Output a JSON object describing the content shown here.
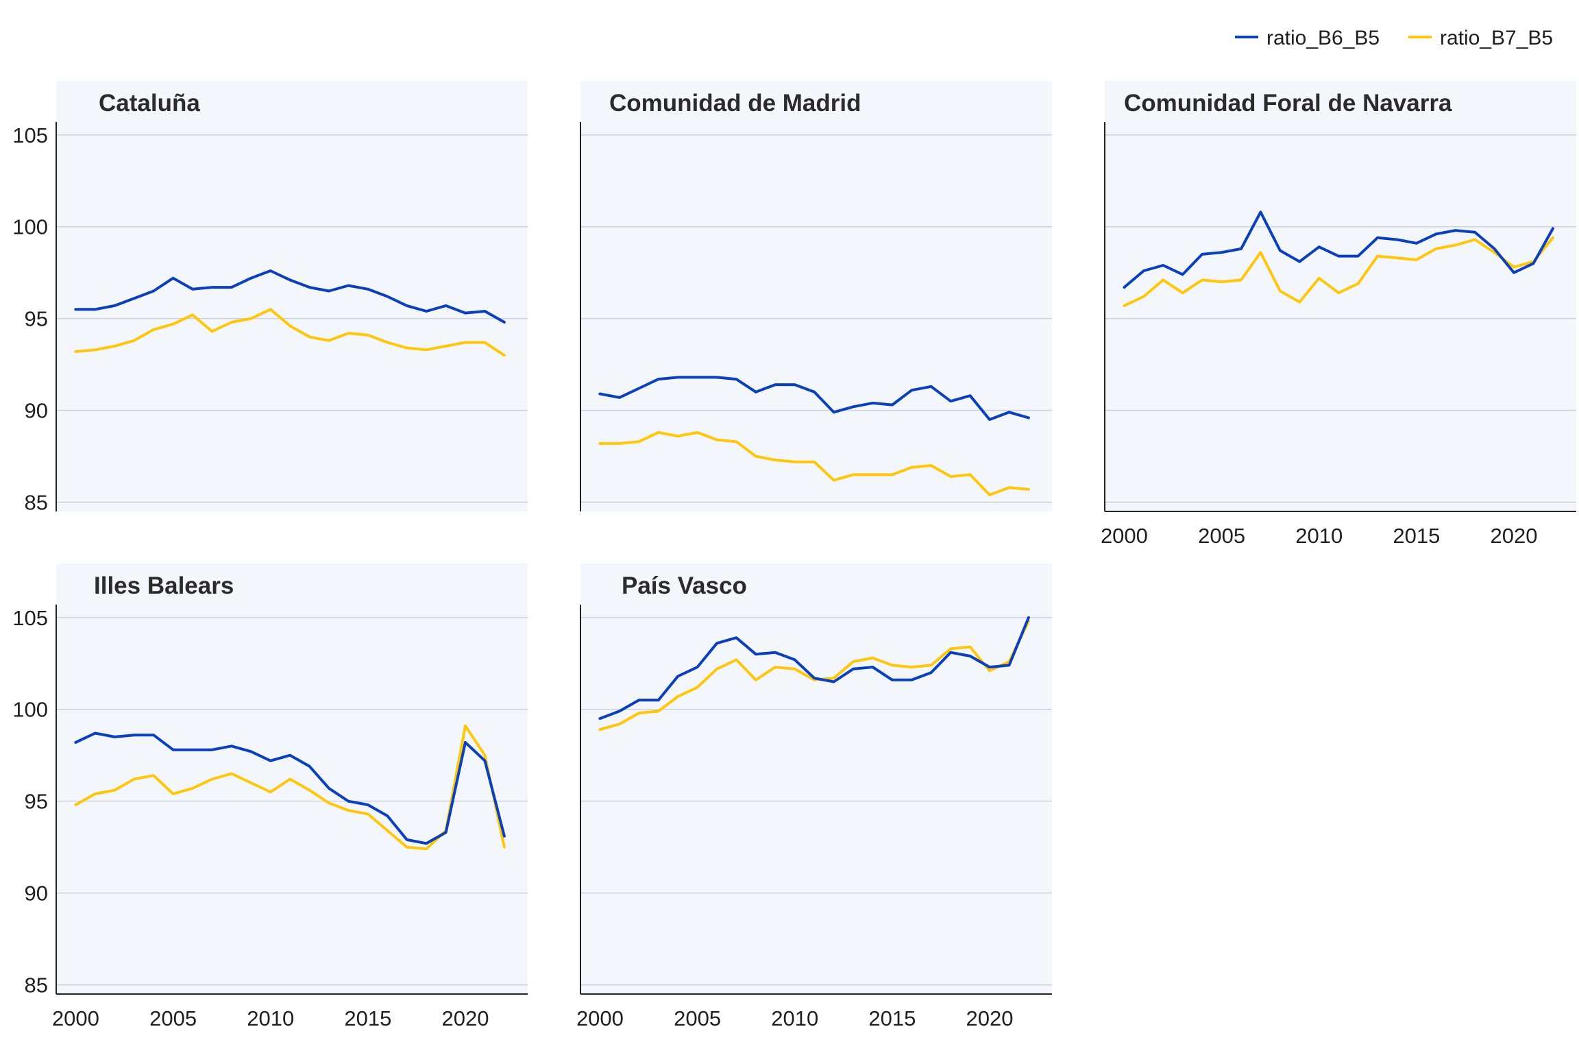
{
  "colors": {
    "ratio_B6_B5": "#0a3fbe",
    "ratio_B7_B5": "#ffc60b",
    "panel_bg": "#f3f6fb",
    "grid": "#cdd3dc",
    "axis": "#222222"
  },
  "chart_data": {
    "type": "line",
    "layout": "facet-grid",
    "legend": {
      "position": "top-right",
      "entries": [
        {
          "key": "ratio_B6_B5",
          "label": "ratio_B6_B5"
        },
        {
          "key": "ratio_B7_B5",
          "label": "ratio_B7_B5"
        }
      ]
    },
    "x": [
      2000,
      2001,
      2002,
      2003,
      2004,
      2005,
      2006,
      2007,
      2008,
      2009,
      2010,
      2011,
      2012,
      2013,
      2014,
      2015,
      2016,
      2017,
      2018,
      2019,
      2020,
      2021,
      2022
    ],
    "x_ticks": [
      2000,
      2005,
      2010,
      2015,
      2020
    ],
    "y_ticks": [
      85,
      90,
      95,
      100,
      105
    ],
    "ylim": [
      84.5,
      105.7
    ],
    "xlim": [
      1999,
      2023.2
    ],
    "grid": true,
    "panels": [
      {
        "title": "Cataluña",
        "series": [
          {
            "key": "ratio_B6_B5",
            "values": [
              95.5,
              95.5,
              95.7,
              96.1,
              96.5,
              97.2,
              96.6,
              96.7,
              96.7,
              97.2,
              97.6,
              97.1,
              96.7,
              96.5,
              96.8,
              96.6,
              96.2,
              95.7,
              95.4,
              95.7,
              95.3,
              95.4,
              94.8
            ]
          },
          {
            "key": "ratio_B7_B5",
            "values": [
              93.2,
              93.3,
              93.5,
              93.8,
              94.4,
              94.7,
              95.2,
              94.3,
              94.8,
              95.0,
              95.5,
              94.6,
              94.0,
              93.8,
              94.2,
              94.1,
              93.7,
              93.4,
              93.3,
              93.5,
              93.7,
              93.7,
              93.0
            ]
          }
        ]
      },
      {
        "title": "Comunidad de Madrid",
        "series": [
          {
            "key": "ratio_B6_B5",
            "values": [
              90.9,
              90.7,
              91.2,
              91.7,
              91.8,
              91.8,
              91.8,
              91.7,
              91.0,
              91.4,
              91.4,
              91.0,
              89.9,
              90.2,
              90.4,
              90.3,
              91.1,
              91.3,
              90.5,
              90.8,
              89.5,
              89.9,
              89.6
            ]
          },
          {
            "key": "ratio_B7_B5",
            "values": [
              88.2,
              88.2,
              88.3,
              88.8,
              88.6,
              88.8,
              88.4,
              88.3,
              87.5,
              87.3,
              87.2,
              87.2,
              86.2,
              86.5,
              86.5,
              86.5,
              86.9,
              87.0,
              86.4,
              86.5,
              85.4,
              85.8,
              85.7
            ]
          }
        ]
      },
      {
        "title": "Comunidad Foral de Navarra",
        "series": [
          {
            "key": "ratio_B6_B5",
            "values": [
              96.7,
              97.6,
              97.9,
              97.4,
              98.5,
              98.6,
              98.8,
              100.8,
              98.7,
              98.1,
              98.9,
              98.4,
              98.4,
              99.4,
              99.3,
              99.1,
              99.6,
              99.8,
              99.7,
              98.8,
              97.5,
              98.0,
              99.9
            ]
          },
          {
            "key": "ratio_B7_B5",
            "values": [
              95.7,
              96.2,
              97.1,
              96.4,
              97.1,
              97.0,
              97.1,
              98.6,
              96.5,
              95.9,
              97.2,
              96.4,
              96.9,
              98.4,
              98.3,
              98.2,
              98.8,
              99.0,
              99.3,
              98.6,
              97.8,
              98.1,
              99.4
            ]
          }
        ]
      },
      {
        "title": "Illes Balears",
        "series": [
          {
            "key": "ratio_B6_B5",
            "values": [
              98.2,
              98.7,
              98.5,
              98.6,
              98.6,
              97.8,
              97.8,
              97.8,
              98.0,
              97.7,
              97.2,
              97.5,
              96.9,
              95.7,
              95.0,
              94.8,
              94.2,
              92.9,
              92.7,
              93.3,
              98.2,
              97.2,
              93.1
            ]
          },
          {
            "key": "ratio_B7_B5",
            "values": [
              94.8,
              95.4,
              95.6,
              96.2,
              96.4,
              95.4,
              95.7,
              96.2,
              96.5,
              96.0,
              95.5,
              96.2,
              95.6,
              94.9,
              94.5,
              94.3,
              93.4,
              92.5,
              92.4,
              93.4,
              99.1,
              97.5,
              92.5
            ]
          }
        ]
      },
      {
        "title": "País Vasco",
        "series": [
          {
            "key": "ratio_B6_B5",
            "values": [
              99.5,
              99.9,
              100.5,
              100.5,
              101.8,
              102.3,
              103.6,
              103.9,
              103.0,
              103.1,
              102.7,
              101.7,
              101.5,
              102.2,
              102.3,
              101.6,
              101.6,
              102.0,
              103.1,
              102.9,
              102.3,
              102.4,
              105.0
            ]
          },
          {
            "key": "ratio_B7_B5",
            "values": [
              98.9,
              99.2,
              99.8,
              99.9,
              100.7,
              101.2,
              102.2,
              102.7,
              101.6,
              102.3,
              102.2,
              101.6,
              101.7,
              102.6,
              102.8,
              102.4,
              102.3,
              102.4,
              103.3,
              103.4,
              102.1,
              102.6,
              104.8
            ]
          }
        ]
      }
    ]
  }
}
